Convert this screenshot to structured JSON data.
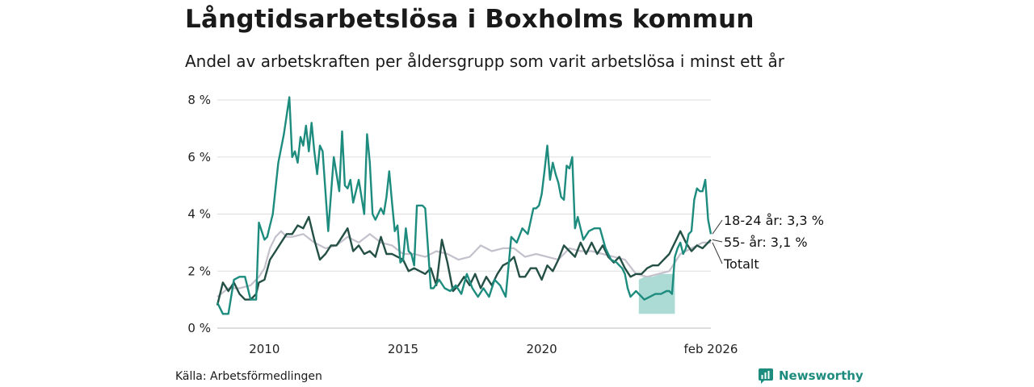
{
  "title": "Långtidsarbetslösa i Boxholms kommun",
  "subtitle": "Andel av arbetskraften per åldersgrupp som varit arbetslösa i minst ett år",
  "source": "Källa: Arbetsförmedlingen",
  "brand": "Newsworthy",
  "colors": {
    "youth": "#1d8c7e",
    "senior": "#244f45",
    "total": "#c4c0cc",
    "band": "#a3d6cf",
    "grid": "#dddddd"
  },
  "chart_data": {
    "type": "line",
    "title": "Långtidsarbetslösa i Boxholms kommun",
    "xlabel": "",
    "ylabel": "",
    "xlim": [
      2008.3,
      2026.1
    ],
    "ylim": [
      0,
      8
    ],
    "yticks": [
      0,
      2,
      4,
      6,
      8
    ],
    "ytick_labels": [
      "0 %",
      "2 %",
      "4 %",
      "6 %",
      "8 %"
    ],
    "xticks": [
      2010,
      2015,
      2020,
      2026.1
    ],
    "xtick_labels": [
      "2010",
      "2015",
      "2020",
      "feb 2026"
    ],
    "grid": true,
    "series": [
      {
        "name": "18-24 år",
        "label": "18-24 år: 3,3 %",
        "x": [
          2008.3,
          2008.5,
          2008.7,
          2008.9,
          2009.1,
          2009.3,
          2009.5,
          2009.7,
          2009.8,
          2010.0,
          2010.1,
          2010.2,
          2010.3,
          2010.5,
          2010.7,
          2010.9,
          2011.0,
          2011.1,
          2011.2,
          2011.3,
          2011.4,
          2011.5,
          2011.6,
          2011.7,
          2011.8,
          2011.9,
          2012.0,
          2012.1,
          2012.3,
          2012.5,
          2012.6,
          2012.7,
          2012.8,
          2012.9,
          2013.0,
          2013.1,
          2013.2,
          2013.4,
          2013.6,
          2013.7,
          2013.8,
          2013.9,
          2014.0,
          2014.2,
          2014.3,
          2014.4,
          2014.5,
          2014.6,
          2014.7,
          2014.8,
          2014.9,
          2015.0,
          2015.1,
          2015.2,
          2015.3,
          2015.4,
          2015.5,
          2015.7,
          2015.8,
          2016.0,
          2016.1,
          2016.3,
          2016.5,
          2016.7,
          2016.9,
          2017.1,
          2017.3,
          2017.5,
          2017.7,
          2017.9,
          2018.1,
          2018.3,
          2018.5,
          2018.7,
          2018.9,
          2019.1,
          2019.3,
          2019.5,
          2019.7,
          2019.8,
          2019.9,
          2020.0,
          2020.1,
          2020.2,
          2020.3,
          2020.4,
          2020.5,
          2020.6,
          2020.7,
          2020.8,
          2020.9,
          2021.0,
          2021.1,
          2021.2,
          2021.3,
          2021.5,
          2021.7,
          2021.9,
          2022.1,
          2022.3,
          2022.5,
          2022.7,
          2022.8,
          2022.9,
          2023.0,
          2023.1,
          2023.2,
          2023.3,
          2023.4,
          2023.5,
          2023.7,
          2023.9,
          2024.1,
          2024.3,
          2024.5,
          2024.6,
          2024.7,
          2024.8,
          2024.9,
          2025.0,
          2025.1,
          2025.2,
          2025.3,
          2025.4,
          2025.5,
          2025.6,
          2025.7,
          2025.8,
          2025.9,
          2026.0,
          2026.1
        ],
        "values": [
          0.9,
          0.5,
          0.5,
          1.7,
          1.8,
          1.8,
          1.0,
          1.0,
          3.7,
          3.1,
          3.2,
          3.6,
          4.0,
          5.8,
          6.8,
          8.1,
          6.0,
          6.2,
          5.8,
          6.7,
          6.4,
          7.1,
          6.2,
          7.2,
          6.2,
          5.4,
          6.4,
          6.2,
          3.4,
          6.0,
          5.4,
          4.8,
          6.9,
          5.0,
          4.9,
          5.2,
          4.4,
          5.2,
          4.0,
          6.8,
          5.8,
          4.0,
          3.8,
          4.2,
          4.0,
          4.6,
          5.5,
          4.4,
          3.4,
          3.6,
          2.3,
          2.4,
          3.5,
          2.7,
          2.6,
          2.2,
          4.3,
          4.3,
          4.2,
          1.4,
          1.4,
          1.7,
          1.4,
          1.3,
          1.5,
          1.2,
          1.9,
          1.4,
          1.1,
          1.4,
          1.1,
          1.7,
          1.5,
          1.1,
          3.2,
          3.0,
          3.5,
          3.3,
          4.2,
          4.2,
          4.3,
          4.7,
          5.5,
          6.4,
          5.2,
          5.8,
          5.4,
          5.1,
          4.6,
          4.5,
          5.7,
          5.6,
          6.0,
          3.5,
          3.9,
          3.1,
          3.4,
          3.5,
          3.5,
          2.8,
          2.4,
          2.3,
          2.2,
          2.1,
          1.9,
          1.4,
          1.1,
          1.2,
          1.3,
          1.2,
          1.0,
          1.1,
          1.2,
          1.2,
          1.3,
          1.3,
          1.2,
          2.5,
          2.8,
          3.0,
          2.6,
          2.8,
          3.3,
          3.4,
          4.5,
          4.9,
          4.8,
          4.8,
          5.2,
          3.8,
          3.3
        ]
      },
      {
        "name": "55- år",
        "label": "55- år: 3,1 %",
        "x": [
          2008.3,
          2008.5,
          2008.7,
          2008.9,
          2009.1,
          2009.3,
          2009.5,
          2009.7,
          2009.8,
          2010.0,
          2010.2,
          2010.4,
          2010.6,
          2010.8,
          2011.0,
          2011.2,
          2011.4,
          2011.6,
          2011.8,
          2012.0,
          2012.2,
          2012.4,
          2012.6,
          2012.8,
          2013.0,
          2013.2,
          2013.4,
          2013.6,
          2013.8,
          2014.0,
          2014.2,
          2014.4,
          2014.6,
          2014.8,
          2015.0,
          2015.2,
          2015.4,
          2015.6,
          2015.8,
          2016.0,
          2016.2,
          2016.4,
          2016.6,
          2016.8,
          2017.0,
          2017.2,
          2017.4,
          2017.6,
          2017.8,
          2018.0,
          2018.2,
          2018.4,
          2018.6,
          2018.8,
          2019.0,
          2019.2,
          2019.4,
          2019.6,
          2019.8,
          2020.0,
          2020.2,
          2020.4,
          2020.6,
          2020.8,
          2021.0,
          2021.2,
          2021.4,
          2021.6,
          2021.8,
          2022.0,
          2022.2,
          2022.4,
          2022.6,
          2022.8,
          2023.0,
          2023.2,
          2023.4,
          2023.6,
          2023.8,
          2024.0,
          2024.2,
          2024.4,
          2024.6,
          2024.8,
          2025.0,
          2025.2,
          2025.4,
          2025.6,
          2025.8,
          2026.1
        ],
        "values": [
          0.8,
          1.6,
          1.3,
          1.6,
          1.2,
          1.0,
          1.0,
          1.2,
          1.6,
          1.7,
          2.4,
          2.7,
          3.0,
          3.3,
          3.3,
          3.6,
          3.5,
          3.9,
          3.1,
          2.4,
          2.6,
          2.9,
          2.9,
          3.2,
          3.5,
          2.7,
          2.9,
          2.6,
          2.7,
          2.5,
          3.2,
          2.6,
          2.6,
          2.5,
          2.4,
          2.0,
          2.1,
          2.0,
          1.9,
          2.1,
          1.5,
          3.1,
          2.3,
          1.3,
          1.5,
          1.8,
          1.5,
          1.9,
          1.4,
          1.8,
          1.5,
          1.9,
          2.2,
          2.3,
          2.5,
          1.8,
          1.8,
          2.1,
          2.1,
          1.7,
          2.2,
          2.0,
          2.4,
          2.9,
          2.7,
          2.5,
          3.0,
          2.6,
          3.0,
          2.6,
          2.9,
          2.5,
          2.3,
          2.5,
          2.1,
          1.8,
          1.9,
          1.9,
          2.1,
          2.2,
          2.2,
          2.4,
          2.6,
          3.0,
          3.4,
          3.0,
          2.7,
          2.9,
          2.8,
          3.1
        ]
      },
      {
        "name": "Totalt",
        "label": "Totalt",
        "x": [
          2008.3,
          2008.7,
          2009.1,
          2009.5,
          2009.8,
          2010.0,
          2010.2,
          2010.4,
          2010.6,
          2010.8,
          2011.0,
          2011.4,
          2011.8,
          2012.2,
          2012.6,
          2013.0,
          2013.4,
          2013.8,
          2014.2,
          2014.6,
          2015.0,
          2015.4,
          2015.8,
          2016.2,
          2016.6,
          2017.0,
          2017.4,
          2017.8,
          2018.2,
          2018.6,
          2019.0,
          2019.4,
          2019.8,
          2020.2,
          2020.6,
          2021.0,
          2021.4,
          2021.8,
          2022.2,
          2022.6,
          2023.0,
          2023.4,
          2023.8,
          2024.2,
          2024.6,
          2025.0,
          2025.4,
          2025.8,
          2026.1
        ],
        "values": [
          1.1,
          1.4,
          1.4,
          1.5,
          1.8,
          2.1,
          2.8,
          3.2,
          3.4,
          3.2,
          3.2,
          3.3,
          3.0,
          2.8,
          2.9,
          3.2,
          3.0,
          3.3,
          3.0,
          2.9,
          2.6,
          2.6,
          2.5,
          2.7,
          2.6,
          2.4,
          2.5,
          2.9,
          2.7,
          2.8,
          2.8,
          2.5,
          2.6,
          2.5,
          2.4,
          2.8,
          2.7,
          2.7,
          2.6,
          2.5,
          2.4,
          1.9,
          1.8,
          1.9,
          2.0,
          2.6,
          2.8,
          3.0,
          3.0
        ]
      }
    ],
    "band": {
      "name": "18-24 år osäkerhet",
      "x": [
        2023.5,
        2023.7,
        2024.0,
        2024.3,
        2024.6,
        2024.8
      ],
      "lower": [
        0.5,
        0.5,
        0.5,
        0.5,
        0.5,
        0.5
      ],
      "upper": [
        1.7,
        1.8,
        1.8,
        1.9,
        1.9,
        1.9
      ]
    }
  }
}
